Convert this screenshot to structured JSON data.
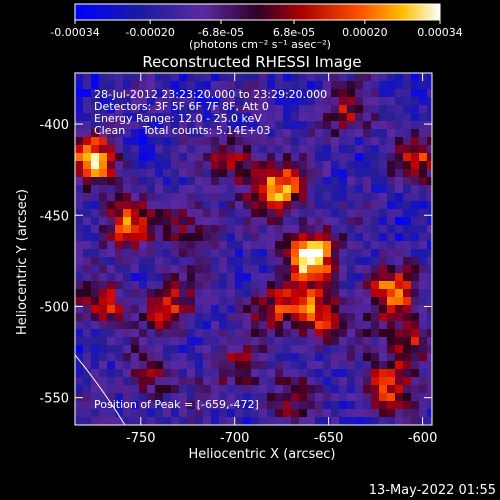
{
  "chart_data": {
    "type": "heatmap",
    "title": "Reconstructed RHESSI Image",
    "xlabel": "Heliocentric X (arcsec)",
    "ylabel": "Heliocentric Y (arcsec)",
    "xlim": [
      -785,
      -595
    ],
    "ylim": [
      -565,
      -372
    ],
    "x_ticks": [
      "-750",
      "-700",
      "-650",
      "-600"
    ],
    "x_tick_values": [
      -750,
      -700,
      -650,
      -600
    ],
    "y_ticks": [
      "-400",
      "-450",
      "-500",
      "-550"
    ],
    "y_tick_values": [
      -400,
      -450,
      -500,
      -550
    ],
    "colorbar": {
      "ticks": [
        "-0.00034",
        "-0.00020",
        "-6.8e-05",
        "6.8e-05",
        "0.00020",
        "0.00034"
      ],
      "tick_values": [
        -0.00034,
        -0.0002,
        -6.8e-05,
        6.8e-05,
        0.0002,
        0.00034
      ],
      "range": [
        -0.00034,
        0.00034
      ],
      "units": "(photons cm⁻² s⁻¹ asec⁻²)"
    },
    "annotations": [
      "28-Jul-2012 23:23:20.000 to 23:29:20.000",
      "Detectors: 3F 5F 6F 7F 8F, Att 0",
      "Energy Range: 12.0 - 25.0 keV",
      "Clean     Total counts: 5.14E+03"
    ],
    "peak_label": "Position of Peak = [-659,-472]",
    "peak": [
      -659,
      -472
    ],
    "source_blobs": [
      {
        "x": -659,
        "y": -472,
        "strength": 1.0
      },
      {
        "x": -676,
        "y": -437,
        "strength": 0.85
      },
      {
        "x": -775,
        "y": -420,
        "strength": 0.75
      },
      {
        "x": -757,
        "y": -455,
        "strength": 0.6
      },
      {
        "x": -735,
        "y": -500,
        "strength": 0.6
      },
      {
        "x": -770,
        "y": -500,
        "strength": 0.55
      },
      {
        "x": -655,
        "y": -505,
        "strength": 0.7
      },
      {
        "x": -618,
        "y": -492,
        "strength": 0.7
      },
      {
        "x": -608,
        "y": -520,
        "strength": 0.6
      },
      {
        "x": -620,
        "y": -545,
        "strength": 0.55
      },
      {
        "x": -700,
        "y": -420,
        "strength": 0.5
      },
      {
        "x": -640,
        "y": -395,
        "strength": 0.45
      },
      {
        "x": -603,
        "y": -420,
        "strength": 0.5
      },
      {
        "x": -700,
        "y": -535,
        "strength": 0.4
      },
      {
        "x": -670,
        "y": -550,
        "strength": 0.35
      },
      {
        "x": -725,
        "y": -455,
        "strength": 0.45
      },
      {
        "x": -680,
        "y": -500,
        "strength": 0.5
      },
      {
        "x": -745,
        "y": -540,
        "strength": 0.4
      }
    ],
    "limb_arc": true
  },
  "footer": {
    "timestamp": "13-May-2022 01:55"
  }
}
